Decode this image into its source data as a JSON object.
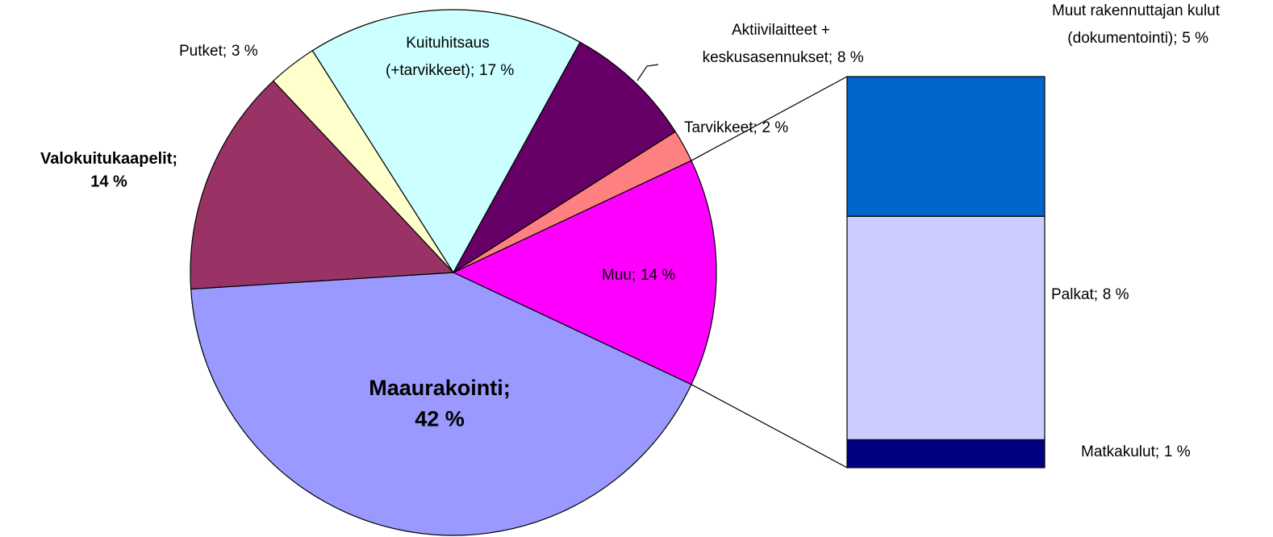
{
  "chart_data": {
    "type": "bar-of-pie",
    "pie": {
      "categories": [
        "Muu;",
        "Maaurakointi;",
        "Valokuitukaapelit;",
        "Putket;",
        "Kuituhitsaus (+tarvikkeet);",
        "Aktiivilaitteet + keskusasennukset;",
        "Tarvikkeet;"
      ],
      "values": [
        14,
        42,
        14,
        3,
        17,
        8,
        2
      ],
      "value_labels": [
        "14 %",
        "42 %",
        "14 %",
        "3 %",
        "17 %",
        "8 %",
        "2 %"
      ],
      "colors": [
        "#ff00ff",
        "#9999ff",
        "#993366",
        "#ffffcc",
        "#ccffff",
        "#660066",
        "#ff8080"
      ]
    },
    "bar": {
      "categories": [
        "Matkakulut;",
        "Palkat;",
        "Muut rakennuttajan kulut (dokumentointi);"
      ],
      "values": [
        1,
        8,
        5
      ],
      "value_labels": [
        "1 %",
        "8 %",
        "5 %"
      ],
      "colors": [
        "#000080",
        "#ccccff",
        "#0066cc"
      ]
    }
  }
}
